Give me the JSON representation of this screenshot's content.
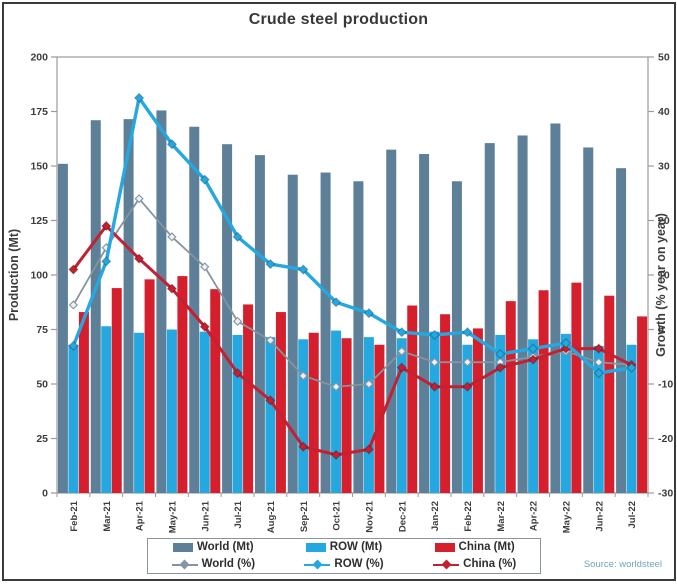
{
  "chart_data": {
    "type": "bar",
    "overlay": "line",
    "title": "Crude steel production",
    "source": "Source: worldsteel",
    "x": {
      "months": [
        "Feb-21",
        "Mar-21",
        "Apr-21",
        "May-21",
        "Jun-21",
        "Jul-21",
        "Aug-21",
        "Sep-21",
        "Oct-21",
        "Nov-21",
        "Dec-21",
        "Jan-22",
        "Feb-22",
        "Mar-22",
        "Apr-22",
        "May-22",
        "Jun-22",
        "Jul-22"
      ]
    },
    "y_left": {
      "label": "Production (Mt)",
      "min": 0,
      "max": 200,
      "ticks": [
        0,
        25,
        50,
        75,
        100,
        125,
        150,
        175,
        200
      ]
    },
    "y_right": {
      "label": "Growth (% year on year)",
      "min": -30,
      "max": 50,
      "ticks": [
        50,
        40,
        30,
        20,
        10,
        0,
        -10,
        -20,
        -30
      ]
    },
    "bar_series": [
      {
        "name": "World (Mt)",
        "color": "#5d7f97",
        "values": [
          151,
          171,
          171.5,
          175.5,
          168,
          160,
          155,
          146,
          147,
          143,
          157.5,
          155.5,
          143,
          160.5,
          164,
          169.5,
          158.5,
          149
        ]
      },
      {
        "name": "ROW (Mt)",
        "color": "#25a8e0",
        "values": [
          68,
          76.5,
          73.5,
          75,
          74,
          72.5,
          71.5,
          70.5,
          74.5,
          71.5,
          71,
          74,
          68,
          72.5,
          70.5,
          73,
          67.5,
          68
        ]
      },
      {
        "name": "China (Mt)",
        "color": "#d51f2d",
        "values": [
          83,
          94,
          98,
          99.5,
          93.5,
          86.5,
          83,
          73.5,
          71,
          68,
          86,
          82,
          75.5,
          88,
          93,
          96.5,
          90.5,
          81
        ]
      }
    ],
    "line_series": [
      {
        "name": "World (%)",
        "color": "#8494a0",
        "marker": "open-diamond",
        "width": 1.8,
        "values": [
          4.5,
          15,
          24,
          17,
          11.5,
          1.5,
          -2,
          -8.5,
          -10.5,
          -10,
          -4,
          -6,
          -6,
          -6,
          -5,
          -4,
          -6,
          -6.5
        ]
      },
      {
        "name": "China (%)",
        "color": "#c32031",
        "marker": "filled-diamond",
        "width": 3,
        "values": [
          11,
          19,
          13,
          7.5,
          0.5,
          -8,
          -13,
          -21.5,
          -23,
          -22,
          -7,
          -10.5,
          -10.5,
          -7,
          -5.5,
          -3.5,
          -3.5,
          -6.5
        ]
      },
      {
        "name": "ROW (%)",
        "color": "#25a8e0",
        "marker": "filled-diamond",
        "width": 3.4,
        "values": [
          -3,
          12.5,
          42.5,
          34,
          27.5,
          17,
          12,
          11,
          5,
          3,
          -0.5,
          -1,
          -0.5,
          -4.5,
          -3.5,
          -2.5,
          -8,
          -7
        ]
      }
    ],
    "legend": [
      {
        "label": "World (Mt)",
        "kind": "bar",
        "color": "#5d7f97"
      },
      {
        "label": "ROW (Mt)",
        "kind": "bar",
        "color": "#25a8e0"
      },
      {
        "label": "China (Mt)",
        "kind": "bar",
        "color": "#d51f2d"
      },
      {
        "label": "World (%)",
        "kind": "line",
        "color": "#8494a0"
      },
      {
        "label": "ROW (%)",
        "kind": "line",
        "color": "#25a8e0"
      },
      {
        "label": "China (%)",
        "kind": "line",
        "color": "#c32031"
      }
    ]
  }
}
